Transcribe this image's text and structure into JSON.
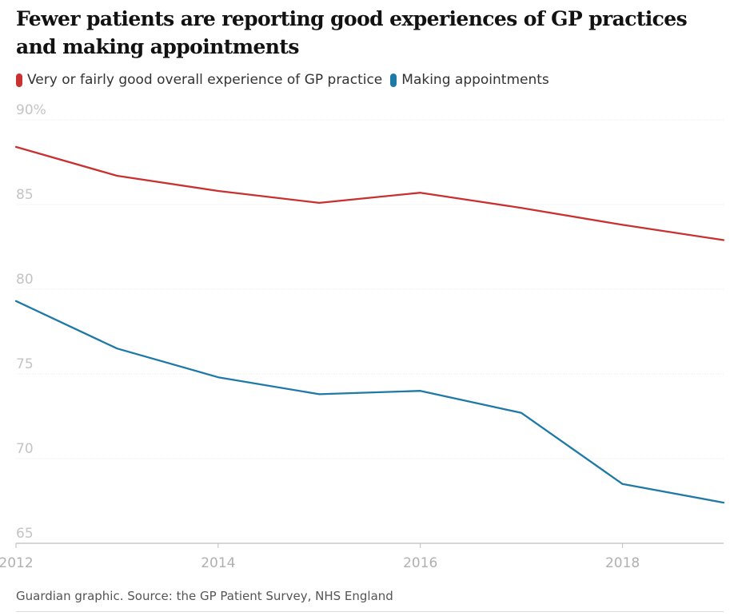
{
  "chart_data": {
    "type": "line",
    "title": "Fewer patients are reporting good experiences of GP practices and making appointments",
    "source": "Guardian graphic. Source: the GP Patient Survey, NHS England",
    "x": [
      2012,
      2013,
      2014,
      2015,
      2016,
      2017,
      2018,
      2019
    ],
    "xticks": [
      "2012",
      "2014",
      "2016",
      "2018"
    ],
    "xlim": [
      2012,
      2019
    ],
    "yticks": [
      "90%",
      "85",
      "80",
      "75",
      "70",
      "65"
    ],
    "ylim": [
      65,
      90
    ],
    "grid": true,
    "legend_position": "top-left",
    "series": [
      {
        "name": "Very or fairly good overall experience of GP practice",
        "color": "#c8312f",
        "values": [
          88.4,
          86.7,
          85.8,
          85.1,
          85.7,
          84.8,
          83.8,
          82.9
        ]
      },
      {
        "name": "Making appointments",
        "color": "#1f79a6",
        "values": [
          79.3,
          76.5,
          74.8,
          73.8,
          74.0,
          72.7,
          68.5,
          67.4
        ]
      }
    ]
  }
}
